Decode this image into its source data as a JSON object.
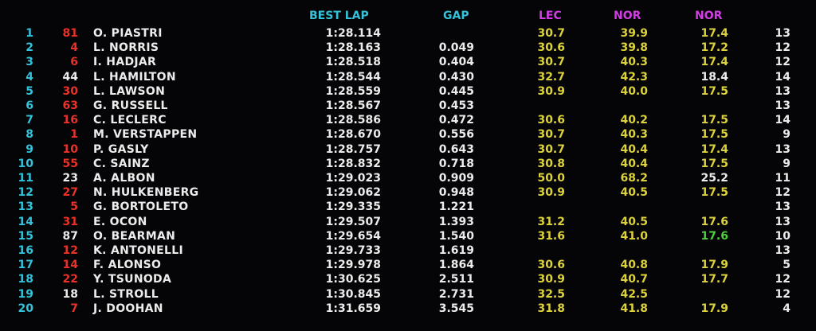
{
  "colors": {
    "header_cyan": "#33c2d9",
    "header_purple": "#d33de6",
    "position": "#33c2d9",
    "red_number": "#e8322a",
    "white": "#ececec",
    "yellow_sector": "#dcd23c",
    "green_sector": "#4bd23c",
    "background": "#050507"
  },
  "header": {
    "best_lap": "BEST LAP",
    "gap": "GAP",
    "sector1": "LEC",
    "sector2": "NOR",
    "sector3": "NOR"
  },
  "rows": [
    {
      "pos": "1",
      "num": "81",
      "num_color": "red",
      "name": "O.  PIASTRI",
      "lap": "1:28.114",
      "gap": "",
      "s1": "30.7",
      "s1_color": "yellow",
      "s2": "39.9",
      "s2_color": "yellow",
      "s3": "17.4",
      "s3_color": "yellow",
      "laps": "13"
    },
    {
      "pos": "2",
      "num": "4",
      "num_color": "red",
      "name": "L.  NORRIS",
      "lap": "1:28.163",
      "gap": "0.049",
      "s1": "30.6",
      "s1_color": "yellow",
      "s2": "39.8",
      "s2_color": "yellow",
      "s3": "17.2",
      "s3_color": "yellow",
      "laps": "12"
    },
    {
      "pos": "3",
      "num": "6",
      "num_color": "red",
      "name": "I.  HADJAR",
      "lap": "1:28.518",
      "gap": "0.404",
      "s1": "30.7",
      "s1_color": "yellow",
      "s2": "40.3",
      "s2_color": "yellow",
      "s3": "17.4",
      "s3_color": "yellow",
      "laps": "12"
    },
    {
      "pos": "4",
      "num": "44",
      "num_color": "white",
      "name": "L.  HAMILTON",
      "lap": "1:28.544",
      "gap": "0.430",
      "s1": "32.7",
      "s1_color": "yellow",
      "s2": "42.3",
      "s2_color": "yellow",
      "s3": "18.4",
      "s3_color": "white",
      "laps": "14"
    },
    {
      "pos": "5",
      "num": "30",
      "num_color": "red",
      "name": "L.  LAWSON",
      "lap": "1:28.559",
      "gap": "0.445",
      "s1": "30.9",
      "s1_color": "yellow",
      "s2": "40.0",
      "s2_color": "yellow",
      "s3": "17.5",
      "s3_color": "yellow",
      "laps": "13"
    },
    {
      "pos": "6",
      "num": "63",
      "num_color": "red",
      "name": "G.  RUSSELL",
      "lap": "1:28.567",
      "gap": "0.453",
      "s1": "",
      "s1_color": "yellow",
      "s2": "",
      "s2_color": "yellow",
      "s3": "",
      "s3_color": "yellow",
      "laps": "13"
    },
    {
      "pos": "7",
      "num": "16",
      "num_color": "red",
      "name": "C.  LECLERC",
      "lap": "1:28.586",
      "gap": "0.472",
      "s1": "30.6",
      "s1_color": "yellow",
      "s2": "40.2",
      "s2_color": "yellow",
      "s3": "17.5",
      "s3_color": "yellow",
      "laps": "14"
    },
    {
      "pos": "8",
      "num": "1",
      "num_color": "red",
      "name": "M.  VERSTAPPEN",
      "lap": "1:28.670",
      "gap": "0.556",
      "s1": "30.7",
      "s1_color": "yellow",
      "s2": "40.3",
      "s2_color": "yellow",
      "s3": "17.5",
      "s3_color": "yellow",
      "laps": "9"
    },
    {
      "pos": "9",
      "num": "10",
      "num_color": "red",
      "name": "P.  GASLY",
      "lap": "1:28.757",
      "gap": "0.643",
      "s1": "30.7",
      "s1_color": "yellow",
      "s2": "40.4",
      "s2_color": "yellow",
      "s3": "17.4",
      "s3_color": "yellow",
      "laps": "13"
    },
    {
      "pos": "10",
      "num": "55",
      "num_color": "red",
      "name": "C.  SAINZ",
      "lap": "1:28.832",
      "gap": "0.718",
      "s1": "30.8",
      "s1_color": "yellow",
      "s2": "40.4",
      "s2_color": "yellow",
      "s3": "17.5",
      "s3_color": "yellow",
      "laps": "9"
    },
    {
      "pos": "11",
      "num": "23",
      "num_color": "white",
      "name": "A.  ALBON",
      "lap": "1:29.023",
      "gap": "0.909",
      "s1": "50.0",
      "s1_color": "yellow",
      "s2": "68.2",
      "s2_color": "yellow",
      "s3": "25.2",
      "s3_color": "white",
      "laps": "11"
    },
    {
      "pos": "12",
      "num": "27",
      "num_color": "red",
      "name": "N.  HULKENBERG",
      "lap": "1:29.062",
      "gap": "0.948",
      "s1": "30.9",
      "s1_color": "yellow",
      "s2": "40.5",
      "s2_color": "yellow",
      "s3": "17.5",
      "s3_color": "yellow",
      "laps": "12"
    },
    {
      "pos": "13",
      "num": "5",
      "num_color": "red",
      "name": "G.  BORTOLETO",
      "lap": "1:29.335",
      "gap": "1.221",
      "s1": "",
      "s1_color": "yellow",
      "s2": "",
      "s2_color": "yellow",
      "s3": "",
      "s3_color": "yellow",
      "laps": "13"
    },
    {
      "pos": "14",
      "num": "31",
      "num_color": "red",
      "name": "E.  OCON",
      "lap": "1:29.507",
      "gap": "1.393",
      "s1": "31.2",
      "s1_color": "yellow",
      "s2": "40.5",
      "s2_color": "yellow",
      "s3": "17.6",
      "s3_color": "yellow",
      "laps": "13"
    },
    {
      "pos": "15",
      "num": "87",
      "num_color": "white",
      "name": "O.  BEARMAN",
      "lap": "1:29.654",
      "gap": "1.540",
      "s1": "31.6",
      "s1_color": "yellow",
      "s2": "41.0",
      "s2_color": "yellow",
      "s3": "17.6",
      "s3_color": "green",
      "laps": "10"
    },
    {
      "pos": "16",
      "num": "12",
      "num_color": "red",
      "name": "K.  ANTONELLI",
      "lap": "1:29.733",
      "gap": "1.619",
      "s1": "",
      "s1_color": "yellow",
      "s2": "",
      "s2_color": "yellow",
      "s3": "",
      "s3_color": "yellow",
      "laps": "13"
    },
    {
      "pos": "17",
      "num": "14",
      "num_color": "red",
      "name": "F.  ALONSO",
      "lap": "1:29.978",
      "gap": "1.864",
      "s1": "30.6",
      "s1_color": "yellow",
      "s2": "40.8",
      "s2_color": "yellow",
      "s3": "17.9",
      "s3_color": "yellow",
      "laps": "5"
    },
    {
      "pos": "18",
      "num": "22",
      "num_color": "red",
      "name": "Y.  TSUNODA",
      "lap": "1:30.625",
      "gap": "2.511",
      "s1": "30.9",
      "s1_color": "yellow",
      "s2": "40.7",
      "s2_color": "yellow",
      "s3": "17.7",
      "s3_color": "yellow",
      "laps": "12"
    },
    {
      "pos": "19",
      "num": "18",
      "num_color": "white",
      "name": "L.  STROLL",
      "lap": "1:30.845",
      "gap": "2.731",
      "s1": "32.5",
      "s1_color": "yellow",
      "s2": "42.5",
      "s2_color": "yellow",
      "s3": "",
      "s3_color": "yellow",
      "laps": "12"
    },
    {
      "pos": "20",
      "num": "7",
      "num_color": "red",
      "name": "J.  DOOHAN",
      "lap": "1:31.659",
      "gap": "3.545",
      "s1": "31.8",
      "s1_color": "yellow",
      "s2": "41.8",
      "s2_color": "yellow",
      "s3": "17.9",
      "s3_color": "yellow",
      "laps": "4"
    }
  ]
}
